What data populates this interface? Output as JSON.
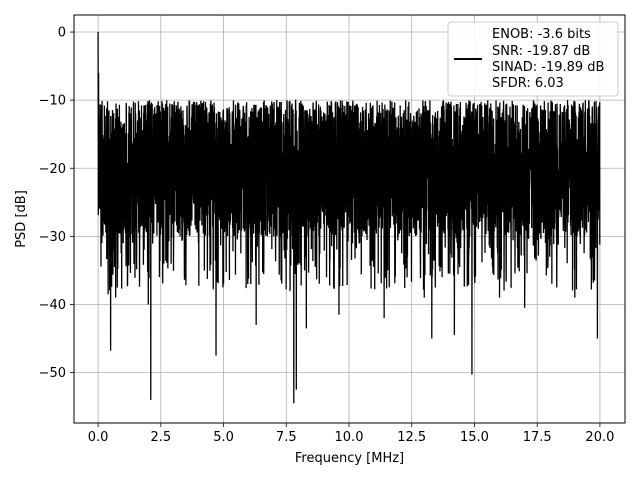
{
  "chart_data": {
    "type": "line",
    "title": "",
    "xlabel": "Frequency [MHz]",
    "ylabel": "PSD [dB]",
    "xlim": [
      -0.96,
      21.0
    ],
    "ylim": [
      -57.4,
      2.5
    ],
    "xticks": [
      "0.0",
      "2.5",
      "5.0",
      "7.5",
      "10.0",
      "12.5",
      "15.0",
      "17.5",
      "20.0"
    ],
    "xtick_values": [
      0,
      2.5,
      5,
      7.5,
      10,
      12.5,
      15,
      17.5,
      20
    ],
    "yticks": [
      "0",
      "−10",
      "−20",
      "−30",
      "−40",
      "−50"
    ],
    "ytick_values": [
      0,
      -10,
      -20,
      -30,
      -40,
      -50
    ],
    "grid": true,
    "legend_position": "top-right",
    "series": [
      {
        "color": "#000000",
        "x_range": [
          0,
          20
        ],
        "band_upper_approx": -12,
        "band_lower_approx": -30,
        "x": [
          0.0,
          0.02,
          0.05,
          0.1,
          0.15,
          0.2,
          0.4,
          0.5,
          0.7,
          1.0,
          1.5,
          2.0,
          2.1,
          3.0,
          4.0,
          4.7,
          5.0,
          6.0,
          6.3,
          7.0,
          7.8,
          7.9,
          8.3,
          9.6,
          10.0,
          11.0,
          11.4,
          12.0,
          13.0,
          13.3,
          14.0,
          14.2,
          14.9,
          15.0,
          16.0,
          17.0,
          17.5,
          18.0,
          19.0,
          19.9,
          20.0
        ],
        "y": [
          0.0,
          -6.0,
          -24.0,
          -12.0,
          -31.0,
          -19.0,
          -38.5,
          -46.8,
          -39.0,
          -31.0,
          -18.0,
          -40.0,
          -54.0,
          -22.0,
          -31.0,
          -47.5,
          -37.0,
          -19.0,
          -43.0,
          -30.0,
          -54.5,
          -52.5,
          -43.5,
          -41.5,
          -24.0,
          -20.0,
          -42.0,
          -28.0,
          -39.0,
          -45.0,
          -30.0,
          -44.5,
          -50.3,
          -36.0,
          -39.0,
          -40.5,
          -30.0,
          -33.0,
          -39.0,
          -45.0,
          -31.0
        ]
      }
    ]
  },
  "legend": {
    "lines": [
      "ENOB: -3.6 bits",
      "SNR: -19.87 dB",
      "SINAD: -19.89 dB",
      "SFDR: 6.03"
    ]
  }
}
